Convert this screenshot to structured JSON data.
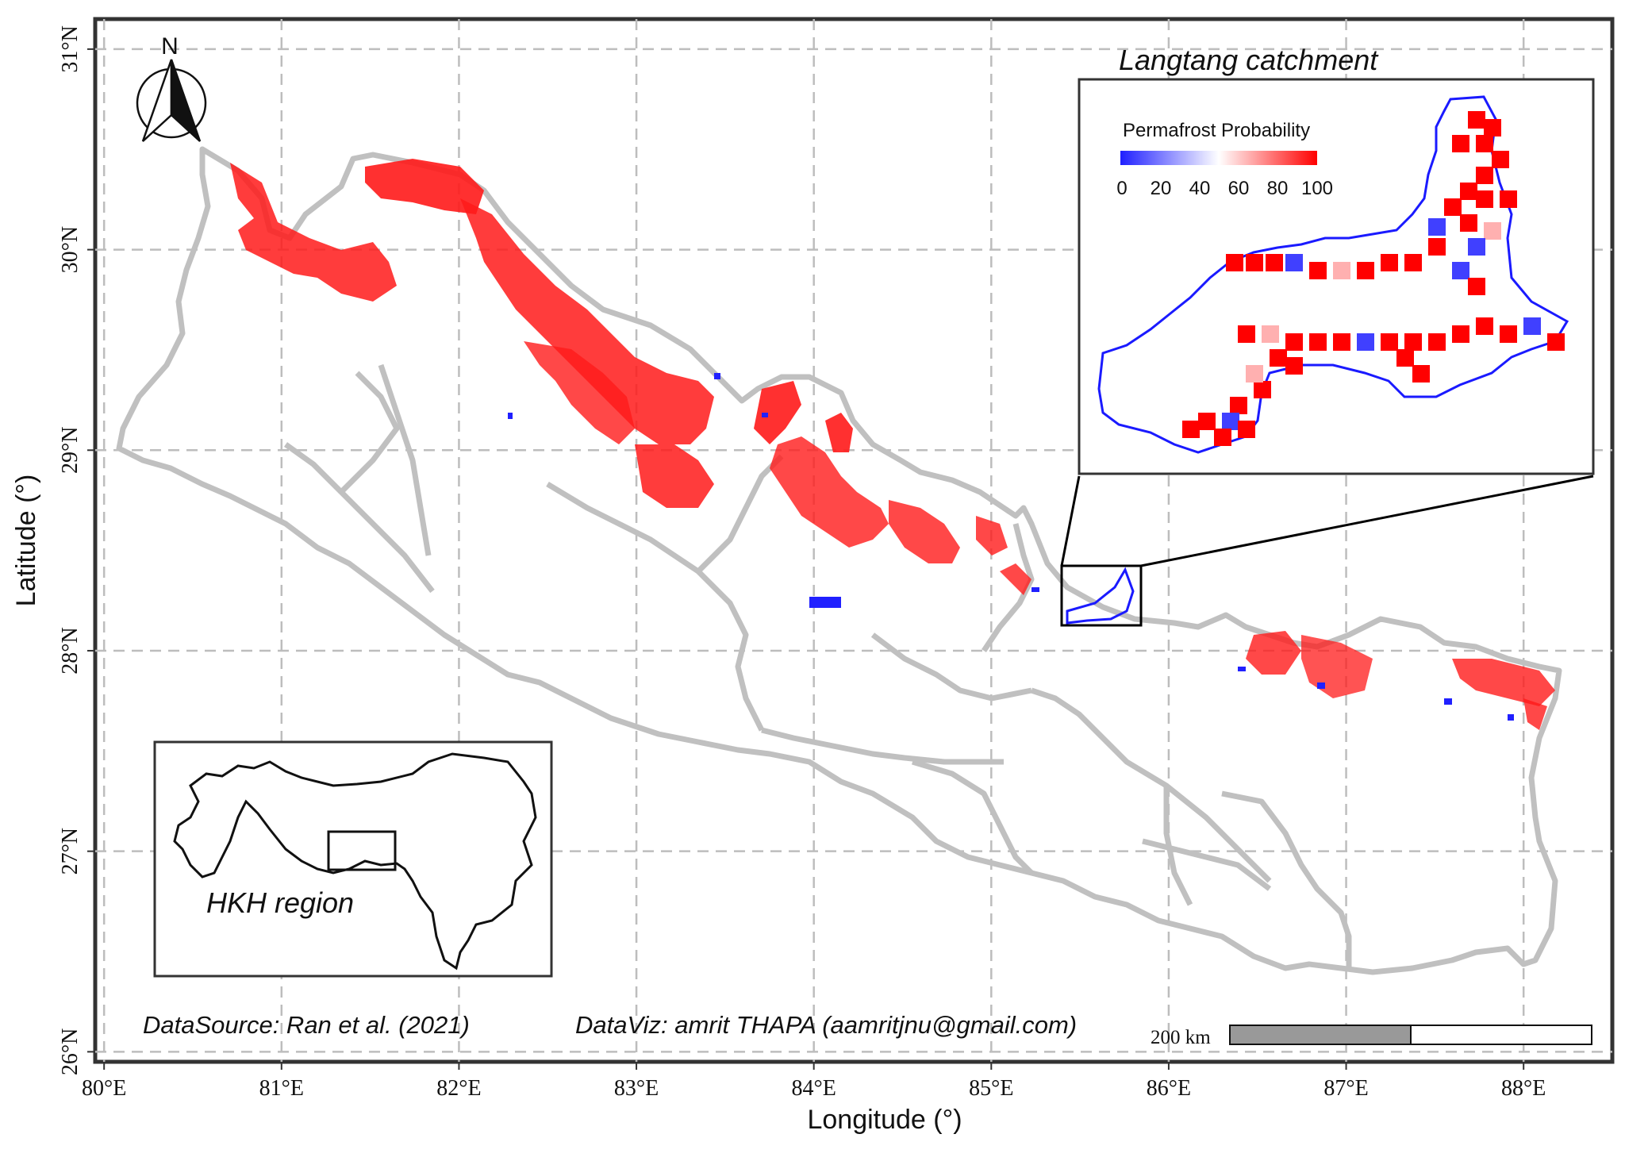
{
  "axes": {
    "x_title": "Longitude (°)",
    "y_title": "Latitude (°)",
    "x_ticks": [
      "80°E",
      "81°E",
      "82°E",
      "83°E",
      "84°E",
      "85°E",
      "86°E",
      "87°E",
      "88°E"
    ],
    "y_ticks": [
      "31°N",
      "30°N",
      "29°N",
      "28°N",
      "27°N",
      "26°N"
    ],
    "x_range": [
      79.95,
      88.5
    ],
    "y_range": [
      25.95,
      31.15
    ]
  },
  "north_arrow": {
    "label": "N"
  },
  "inset_main": {
    "title": "Langtang catchment",
    "legend_title": "Permafrost Probability",
    "legend_ticks": [
      "0",
      "20",
      "40",
      "60",
      "80",
      "100"
    ],
    "legend_colors": [
      "#2020ff",
      "#ffffff",
      "#ff0000"
    ]
  },
  "inset_region": {
    "label": "HKH region"
  },
  "credits": {
    "source": "DataSource: Ran et al. (2021)",
    "viz": "DataViz: amrit THAPA (aamritjnu@gmail.com)"
  },
  "scale_bar": {
    "label": "200 km"
  },
  "colors": {
    "boundary": "#c0c0c0",
    "grid": "#bdbdbd",
    "high": "#ff0000",
    "low": "#2020ff"
  }
}
